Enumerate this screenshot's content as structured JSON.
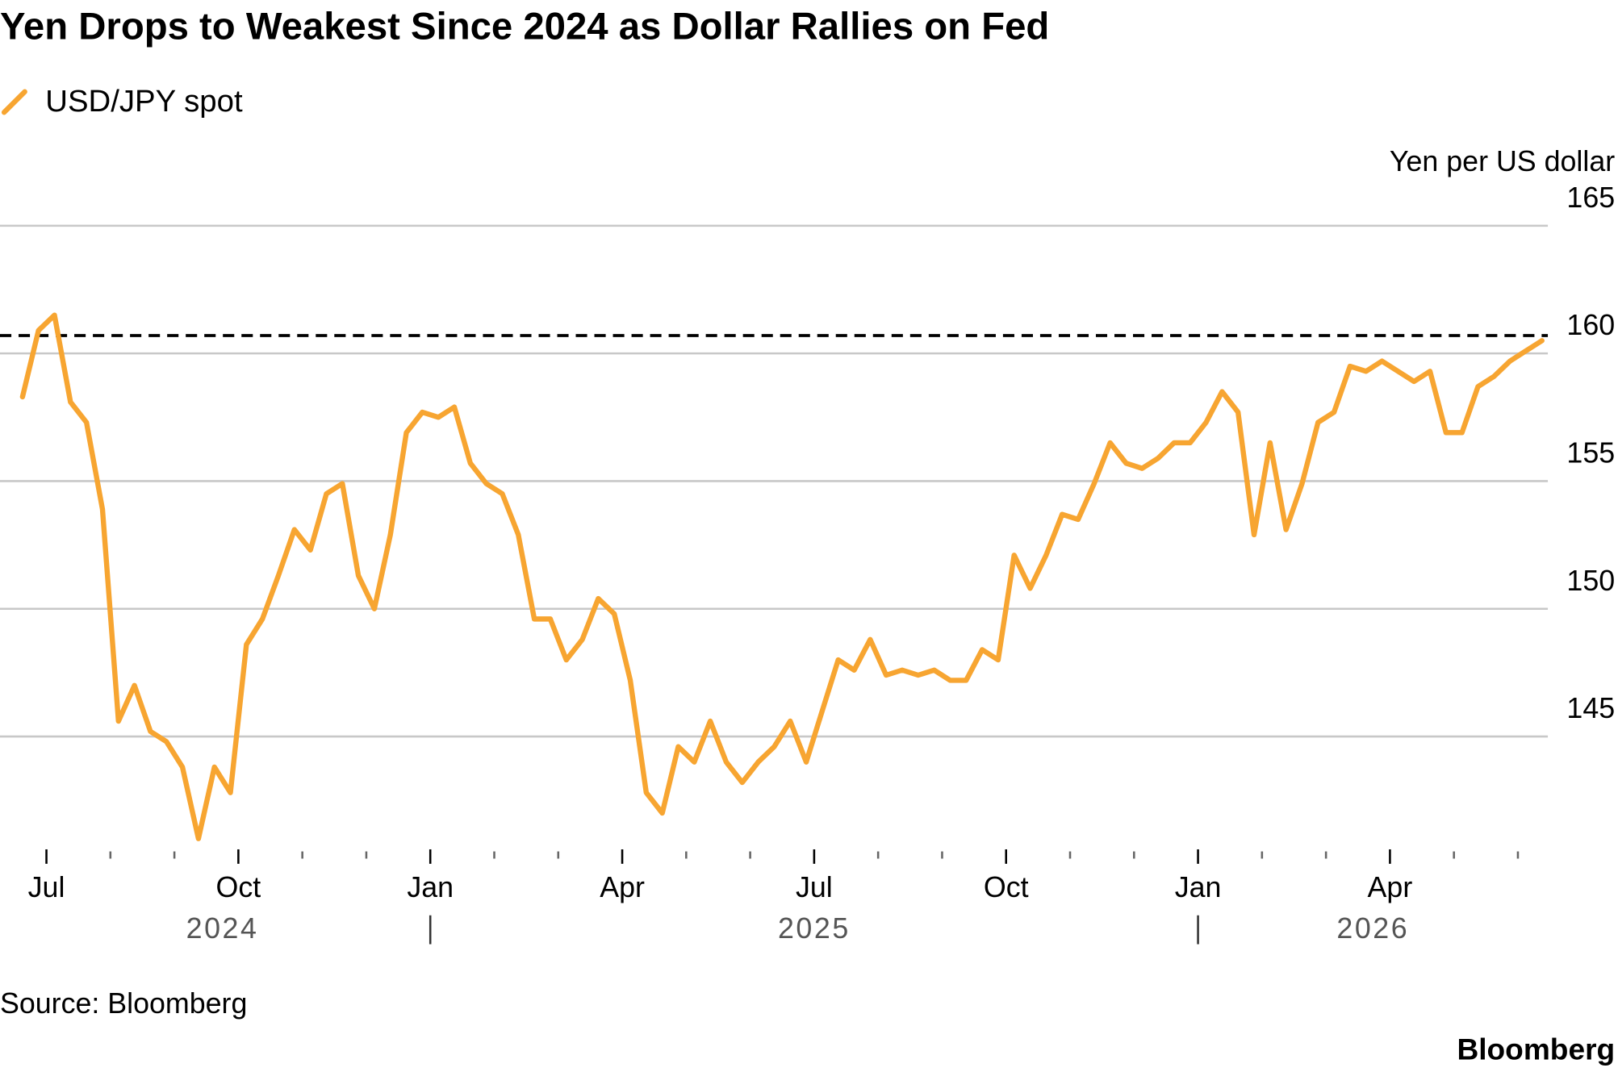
{
  "chart_data": {
    "type": "line",
    "title": "Yen Drops to Weakest Since 2024 as Dollar Rallies on Fed",
    "y_axis_label": "Yen per US dollar",
    "source": "Source: Bloomberg",
    "logo": "Bloomberg",
    "x": [
      "2024-06",
      "2024-06",
      "2024-07",
      "2024-07",
      "2024-07",
      "2024-07",
      "2024-08",
      "2024-08",
      "2024-08",
      "2024-08",
      "2024-09",
      "2024-09",
      "2024-09",
      "2024-09",
      "2024-10",
      "2024-10",
      "2024-10",
      "2024-10",
      "2024-11",
      "2024-11",
      "2024-11",
      "2024-11",
      "2024-12",
      "2024-12",
      "2024-12",
      "2024-12",
      "2025-01",
      "2025-01",
      "2025-01",
      "2025-01",
      "2025-02",
      "2025-02",
      "2025-02",
      "2025-02",
      "2025-03",
      "2025-03",
      "2025-03",
      "2025-03",
      "2025-04",
      "2025-04",
      "2025-04",
      "2025-04",
      "2025-05",
      "2025-05",
      "2025-05",
      "2025-05",
      "2025-06",
      "2025-06",
      "2025-06",
      "2025-06",
      "2025-07",
      "2025-07",
      "2025-07",
      "2025-07",
      "2025-08",
      "2025-08",
      "2025-08",
      "2025-08",
      "2025-09",
      "2025-09",
      "2025-09",
      "2025-09",
      "2025-10",
      "2025-10",
      "2025-10",
      "2025-10",
      "2025-11",
      "2025-11",
      "2025-11",
      "2025-11",
      "2025-12",
      "2025-12",
      "2025-12",
      "2025-12",
      "2026-01",
      "2026-01",
      "2026-01",
      "2026-01",
      "2026-02",
      "2026-02",
      "2026-02",
      "2026-02",
      "2026-03",
      "2026-03",
      "2026-03",
      "2026-03",
      "2026-04",
      "2026-04",
      "2026-04",
      "2026-04",
      "2026-05",
      "2026-05",
      "2026-05",
      "2026-05",
      "2026-06",
      "2026-06"
    ],
    "series": [
      {
        "name": "USD/JPY spot",
        "color": "#f7a531",
        "values": [
          158.3,
          160.9,
          161.5,
          158.1,
          157.3,
          153.9,
          145.6,
          147.0,
          145.2,
          144.8,
          143.8,
          141.0,
          143.8,
          142.8,
          148.6,
          149.6,
          151.3,
          153.1,
          152.3,
          154.5,
          154.9,
          151.3,
          150.0,
          152.9,
          156.9,
          157.7,
          157.5,
          157.9,
          155.7,
          154.9,
          154.5,
          152.9,
          149.6,
          149.6,
          148.0,
          148.8,
          150.4,
          149.8,
          147.2,
          142.8,
          142.0,
          144.6,
          144.0,
          145.6,
          144.0,
          143.2,
          144.0,
          144.6,
          145.6,
          144.0,
          146.0,
          148.0,
          147.6,
          148.8,
          147.4,
          147.6,
          147.4,
          147.6,
          147.2,
          147.2,
          148.4,
          148.0,
          152.1,
          150.8,
          152.1,
          153.7,
          153.5,
          154.9,
          156.5,
          155.7,
          155.5,
          155.9,
          156.5,
          156.5,
          157.3,
          158.5,
          157.7,
          152.9,
          156.5,
          153.1,
          154.9,
          157.3,
          157.7,
          159.5,
          159.3,
          159.7,
          159.3,
          158.9,
          159.3,
          156.9,
          156.9,
          158.7,
          159.1,
          159.7,
          160.1,
          160.5
        ]
      }
    ],
    "reference_line": 160.7,
    "ylim": [
      140.5,
      165
    ],
    "yticks": [
      145,
      150,
      155,
      160,
      165
    ],
    "xticks": [
      {
        "value": "2024-07",
        "label": "Jul"
      },
      {
        "value": "2024-10",
        "label": "Oct"
      },
      {
        "value": "2025-01",
        "label": "Jan"
      },
      {
        "value": "2025-04",
        "label": "Apr"
      },
      {
        "value": "2025-07",
        "label": "Jul"
      },
      {
        "value": "2025-10",
        "label": "Oct"
      },
      {
        "value": "2026-01",
        "label": "Jan"
      },
      {
        "value": "2026-04",
        "label": "Apr"
      }
    ],
    "x_years": [
      "2024",
      "2025",
      "2026"
    ],
    "grid": true
  }
}
